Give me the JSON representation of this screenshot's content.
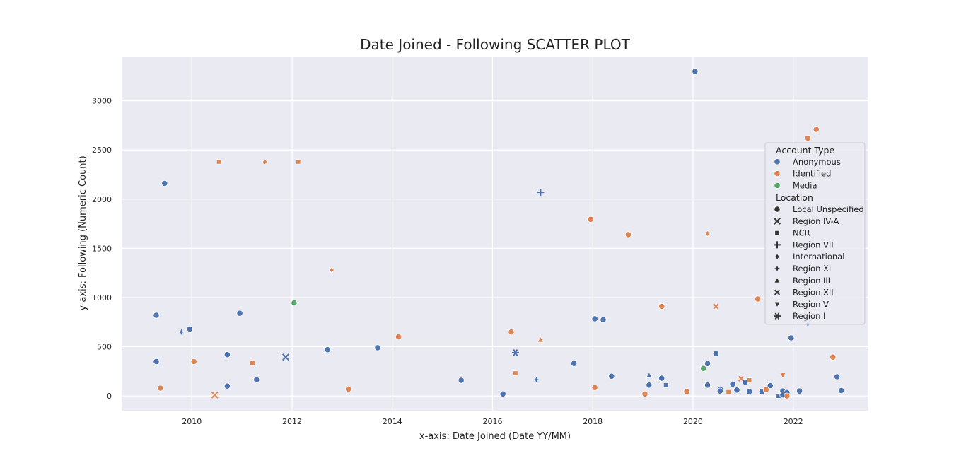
{
  "chart_data": {
    "type": "scatter",
    "title": "Date Joined - Following SCATTER PLOT",
    "xlabel": "x-axis: Date Joined (Date YY/MM)",
    "ylabel": "y-axis: Following (Numeric Count)",
    "xlim": [
      2008.6,
      2023.5
    ],
    "ylim": [
      -150,
      3450
    ],
    "xticks": [
      2010,
      2012,
      2014,
      2016,
      2018,
      2020,
      2022
    ],
    "yticks": [
      0,
      500,
      1000,
      1500,
      2000,
      2500,
      3000
    ],
    "xtick_labels": [
      "2010",
      "2012",
      "2014",
      "2016",
      "2018",
      "2020",
      "2022"
    ],
    "ytick_labels": [
      "0",
      "500",
      "1000",
      "1500",
      "2000",
      "2500",
      "3000"
    ],
    "grid": true,
    "legend_placement": "right",
    "colors": {
      "Anonymous": "#4c72b0",
      "Identified": "#dd8452",
      "Media": "#55a868"
    },
    "legend": {
      "hue_title": "Account Type",
      "hue": [
        {
          "label": "Anonymous",
          "color": "#4c72b0"
        },
        {
          "label": "Identified",
          "color": "#dd8452"
        },
        {
          "label": "Media",
          "color": "#55a868"
        }
      ],
      "style_title": "Location",
      "style": [
        {
          "label": "Local Unspecified",
          "marker": "circle"
        },
        {
          "label": "Region IV-A",
          "marker": "xcross"
        },
        {
          "label": "NCR",
          "marker": "square"
        },
        {
          "label": "Region VII",
          "marker": "plus"
        },
        {
          "label": "International",
          "marker": "diamond"
        },
        {
          "label": "Region XI",
          "marker": "star4"
        },
        {
          "label": "Region III",
          "marker": "triangle"
        },
        {
          "label": "Region XII",
          "marker": "smallx"
        },
        {
          "label": "Region V",
          "marker": "tridown"
        },
        {
          "label": "Region I",
          "marker": "asterisk"
        }
      ]
    },
    "points": [
      {
        "x": "2009-04",
        "y": 820,
        "type": "Anonymous",
        "location": "Local Unspecified"
      },
      {
        "x": "2009-04",
        "y": 350,
        "type": "Anonymous",
        "location": "Local Unspecified"
      },
      {
        "x": "2009-05",
        "y": 80,
        "type": "Identified",
        "location": "Local Unspecified"
      },
      {
        "x": "2009-06",
        "y": 2160,
        "type": "Anonymous",
        "location": "Local Unspecified"
      },
      {
        "x": "2009-10",
        "y": 650,
        "type": "Anonymous",
        "location": "Region XI"
      },
      {
        "x": "2009-12",
        "y": 680,
        "type": "Anonymous",
        "location": "Local Unspecified"
      },
      {
        "x": "2010-01",
        "y": 350,
        "type": "Identified",
        "location": "Local Unspecified"
      },
      {
        "x": "2010-06",
        "y": 10,
        "type": "Identified",
        "location": "Region IV-A"
      },
      {
        "x": "2010-07",
        "y": 2380,
        "type": "Identified",
        "location": "NCR"
      },
      {
        "x": "2010-09",
        "y": 420,
        "type": "Anonymous",
        "location": "Local Unspecified"
      },
      {
        "x": "2010-09",
        "y": 100,
        "type": "Anonymous",
        "location": "Local Unspecified"
      },
      {
        "x": "2010-12",
        "y": 840,
        "type": "Anonymous",
        "location": "Local Unspecified"
      },
      {
        "x": "2011-03",
        "y": 335,
        "type": "Identified",
        "location": "Local Unspecified"
      },
      {
        "x": "2011-04",
        "y": 165,
        "type": "Anonymous",
        "location": "Local Unspecified"
      },
      {
        "x": "2011-06",
        "y": 2380,
        "type": "Identified",
        "location": "International"
      },
      {
        "x": "2011-11",
        "y": 395,
        "type": "Anonymous",
        "location": "Region IV-A"
      },
      {
        "x": "2012-01",
        "y": 945,
        "type": "Media",
        "location": "Local Unspecified"
      },
      {
        "x": "2012-02",
        "y": 2380,
        "type": "Identified",
        "location": "NCR"
      },
      {
        "x": "2012-09",
        "y": 470,
        "type": "Anonymous",
        "location": "Local Unspecified"
      },
      {
        "x": "2012-10",
        "y": 1280,
        "type": "Identified",
        "location": "International"
      },
      {
        "x": "2013-02",
        "y": 70,
        "type": "Identified",
        "location": "Local Unspecified"
      },
      {
        "x": "2013-09",
        "y": 490,
        "type": "Anonymous",
        "location": "Local Unspecified"
      },
      {
        "x": "2014-02",
        "y": 600,
        "type": "Identified",
        "location": "Local Unspecified"
      },
      {
        "x": "2015-05",
        "y": 160,
        "type": "Anonymous",
        "location": "Local Unspecified"
      },
      {
        "x": "2016-03",
        "y": 20,
        "type": "Anonymous",
        "location": "Local Unspecified"
      },
      {
        "x": "2016-05",
        "y": 650,
        "type": "Identified",
        "location": "Local Unspecified"
      },
      {
        "x": "2016-06",
        "y": 440,
        "type": "Anonymous",
        "location": "Region I"
      },
      {
        "x": "2016-06",
        "y": 230,
        "type": "Identified",
        "location": "NCR"
      },
      {
        "x": "2016-11",
        "y": 165,
        "type": "Anonymous",
        "location": "Region XI"
      },
      {
        "x": "2016-12",
        "y": 2070,
        "type": "Anonymous",
        "location": "Region VII"
      },
      {
        "x": "2016-12",
        "y": 570,
        "type": "Identified",
        "location": "Region III"
      },
      {
        "x": "2017-08",
        "y": 330,
        "type": "Anonymous",
        "location": "Local Unspecified"
      },
      {
        "x": "2017-12",
        "y": 1795,
        "type": "Identified",
        "location": "Local Unspecified"
      },
      {
        "x": "2018-01",
        "y": 785,
        "type": "Anonymous",
        "location": "Local Unspecified"
      },
      {
        "x": "2018-01",
        "y": 85,
        "type": "Identified",
        "location": "Local Unspecified"
      },
      {
        "x": "2018-03",
        "y": 775,
        "type": "Anonymous",
        "location": "Local Unspecified"
      },
      {
        "x": "2018-05",
        "y": 200,
        "type": "Anonymous",
        "location": "Local Unspecified"
      },
      {
        "x": "2018-09",
        "y": 1640,
        "type": "Identified",
        "location": "Local Unspecified"
      },
      {
        "x": "2019-01",
        "y": 20,
        "type": "Identified",
        "location": "Local Unspecified"
      },
      {
        "x": "2019-02",
        "y": 110,
        "type": "Anonymous",
        "location": "Local Unspecified"
      },
      {
        "x": "2019-02",
        "y": 210,
        "type": "Anonymous",
        "location": "Region III"
      },
      {
        "x": "2019-05",
        "y": 910,
        "type": "Identified",
        "location": "Local Unspecified"
      },
      {
        "x": "2019-05",
        "y": 180,
        "type": "Anonymous",
        "location": "Local Unspecified"
      },
      {
        "x": "2019-06",
        "y": 110,
        "type": "Anonymous",
        "location": "NCR"
      },
      {
        "x": "2019-11",
        "y": 45,
        "type": "Identified",
        "location": "Local Unspecified"
      },
      {
        "x": "2020-01",
        "y": 3300,
        "type": "Anonymous",
        "location": "Local Unspecified"
      },
      {
        "x": "2020-03",
        "y": 280,
        "type": "Media",
        "location": "Local Unspecified"
      },
      {
        "x": "2020-04",
        "y": 1650,
        "type": "Identified",
        "location": "International"
      },
      {
        "x": "2020-04",
        "y": 330,
        "type": "Anonymous",
        "location": "Local Unspecified"
      },
      {
        "x": "2020-04",
        "y": 110,
        "type": "Anonymous",
        "location": "Local Unspecified"
      },
      {
        "x": "2020-06",
        "y": 910,
        "type": "Identified",
        "location": "Region XII"
      },
      {
        "x": "2020-06",
        "y": 430,
        "type": "Anonymous",
        "location": "Local Unspecified"
      },
      {
        "x": "2020-07",
        "y": 70,
        "type": "Anonymous",
        "location": "Local Unspecified"
      },
      {
        "x": "2020-07",
        "y": 50,
        "type": "Anonymous",
        "location": "Local Unspecified"
      },
      {
        "x": "2020-09",
        "y": 40,
        "type": "Identified",
        "location": "NCR"
      },
      {
        "x": "2020-10",
        "y": 120,
        "type": "Anonymous",
        "location": "Local Unspecified"
      },
      {
        "x": "2020-11",
        "y": 60,
        "type": "Anonymous",
        "location": "Local Unspecified"
      },
      {
        "x": "2020-12",
        "y": 175,
        "type": "Identified",
        "location": "Region XII"
      },
      {
        "x": "2021-01",
        "y": 140,
        "type": "Anonymous",
        "location": "Local Unspecified"
      },
      {
        "x": "2021-02",
        "y": 45,
        "type": "Anonymous",
        "location": "Local Unspecified"
      },
      {
        "x": "2021-02",
        "y": 160,
        "type": "Identified",
        "location": "NCR"
      },
      {
        "x": "2021-04",
        "y": 985,
        "type": "Identified",
        "location": "Local Unspecified"
      },
      {
        "x": "2021-05",
        "y": 45,
        "type": "Anonymous",
        "location": "Local Unspecified"
      },
      {
        "x": "2021-06",
        "y": 65,
        "type": "Identified",
        "location": "Local Unspecified"
      },
      {
        "x": "2021-07",
        "y": 105,
        "type": "Anonymous",
        "location": "Local Unspecified"
      },
      {
        "x": "2021-09",
        "y": 0,
        "type": "Anonymous",
        "location": "NCR"
      },
      {
        "x": "2021-10",
        "y": 50,
        "type": "Anonymous",
        "location": "Local Unspecified"
      },
      {
        "x": "2021-10",
        "y": 10,
        "type": "Anonymous",
        "location": "Local Unspecified"
      },
      {
        "x": "2021-10",
        "y": 210,
        "type": "Identified",
        "location": "Region V"
      },
      {
        "x": "2021-11",
        "y": 35,
        "type": "Anonymous",
        "location": "Local Unspecified"
      },
      {
        "x": "2021-11",
        "y": 0,
        "type": "Identified",
        "location": "Local Unspecified"
      },
      {
        "x": "2021-12",
        "y": 590,
        "type": "Anonymous",
        "location": "Local Unspecified"
      },
      {
        "x": "2022-02",
        "y": 50,
        "type": "Anonymous",
        "location": "Local Unspecified"
      },
      {
        "x": "2022-04",
        "y": 2620,
        "type": "Identified",
        "location": "Local Unspecified"
      },
      {
        "x": "2022-04",
        "y": 730,
        "type": "Anonymous",
        "location": "Region XI"
      },
      {
        "x": "2022-06",
        "y": 2710,
        "type": "Identified",
        "location": "Local Unspecified"
      },
      {
        "x": "2022-10",
        "y": 395,
        "type": "Identified",
        "location": "Local Unspecified"
      },
      {
        "x": "2022-11",
        "y": 195,
        "type": "Anonymous",
        "location": "Local Unspecified"
      },
      {
        "x": "2022-12",
        "y": 55,
        "type": "Anonymous",
        "location": "Local Unspecified"
      }
    ]
  }
}
